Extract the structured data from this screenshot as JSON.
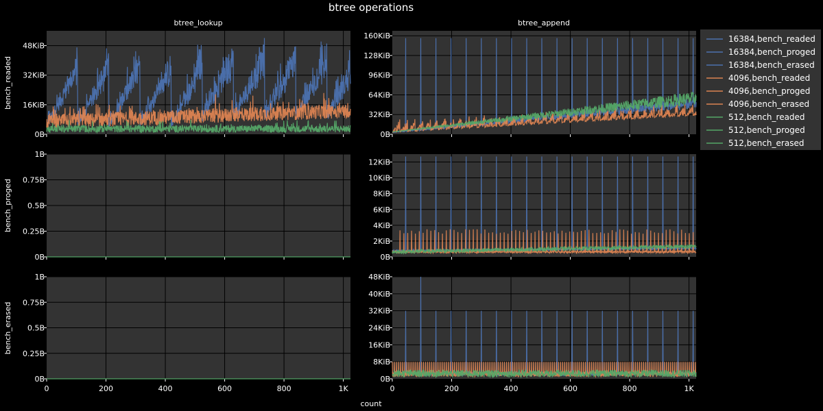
{
  "chart_data": {
    "type": "line",
    "title": "btree operations",
    "xlabel": "count",
    "columns": [
      "btree_lookup",
      "btree_append"
    ],
    "rows": [
      "bench_readed",
      "bench_proged",
      "bench_erased"
    ],
    "xlim": [
      0,
      1024
    ],
    "x_ticks": [
      "0",
      "200",
      "400",
      "600",
      "800",
      "1K"
    ],
    "x_tick_values": [
      0,
      200,
      400,
      600,
      800,
      1000
    ],
    "legend_position": "right-outside",
    "grid": true,
    "panels": [
      {
        "row": 0,
        "col": 0,
        "ylim_bytes": [
          0,
          57344
        ],
        "y_ticks": [
          "0B",
          "16KiB",
          "32KiB",
          "48KiB"
        ],
        "y_tick_values": [
          0,
          16384,
          32768,
          49152
        ]
      },
      {
        "row": 0,
        "col": 1,
        "ylim_bytes": [
          0,
          172032
        ],
        "y_ticks": [
          "0B",
          "32KiB",
          "64KiB",
          "96KiB",
          "128KiB",
          "160KiB"
        ],
        "y_tick_values": [
          0,
          32768,
          65536,
          98304,
          131072,
          163840
        ]
      },
      {
        "row": 1,
        "col": 0,
        "ylim_bytes": [
          0,
          1
        ],
        "y_ticks": [
          "0B",
          "0.25B",
          "0.5B",
          "0.75B",
          "1B"
        ],
        "y_tick_values": [
          0,
          0.25,
          0.5,
          0.75,
          1
        ]
      },
      {
        "row": 1,
        "col": 1,
        "ylim_bytes": [
          0,
          13312
        ],
        "y_ticks": [
          "0B",
          "2KiB",
          "4KiB",
          "6KiB",
          "8KiB",
          "10KiB",
          "12KiB"
        ],
        "y_tick_values": [
          0,
          2048,
          4096,
          6144,
          8192,
          10240,
          12288
        ]
      },
      {
        "row": 2,
        "col": 0,
        "ylim_bytes": [
          0,
          1
        ],
        "y_ticks": [
          "0B",
          "0.25B",
          "0.5B",
          "0.75B",
          "1B"
        ],
        "y_tick_values": [
          0,
          0.25,
          0.5,
          0.75,
          1
        ]
      },
      {
        "row": 2,
        "col": 1,
        "ylim_bytes": [
          0,
          49152
        ],
        "y_ticks": [
          "0B",
          "8KiB",
          "16KiB",
          "24KiB",
          "32KiB",
          "40KiB",
          "48KiB"
        ],
        "y_tick_values": [
          0,
          8192,
          16384,
          24576,
          32768,
          40960,
          49152
        ]
      }
    ],
    "series": [
      {
        "name": "16384,bench_readed",
        "color": "#4c72b0",
        "block_size": 16384
      },
      {
        "name": "16384,bench_proged",
        "color": "#4c72b0",
        "block_size": 16384
      },
      {
        "name": "16384,bench_erased",
        "color": "#4c72b0",
        "block_size": 16384
      },
      {
        "name": "4096,bench_readed",
        "color": "#dd8452",
        "block_size": 4096
      },
      {
        "name": "4096,bench_proged",
        "color": "#dd8452",
        "block_size": 4096
      },
      {
        "name": "4096,bench_erased",
        "color": "#dd8452",
        "block_size": 4096
      },
      {
        "name": "512,bench_readed",
        "color": "#55a868",
        "block_size": 512
      },
      {
        "name": "512,bench_proged",
        "color": "#55a868",
        "block_size": 512
      },
      {
        "name": "512,bench_erased",
        "color": "#55a868",
        "block_size": 512
      }
    ],
    "values_approx": {
      "btree_lookup_bench_readed": {
        "16384_max": 56000,
        "4096_max": 24000,
        "512_max": 8000
      },
      "btree_lookup_bench_proged": {
        "all": 0
      },
      "btree_lookup_bench_erased": {
        "all": 0
      },
      "btree_append_bench_readed": {
        "16384_spikes": 160000,
        "trend_end": 60000
      },
      "btree_append_bench_proged": {
        "16384_spikes": 13000,
        "4096_spikes": 3000,
        "512_level": 1000
      },
      "btree_append_bench_erased": {
        "16384_spikes": 32768,
        "16384_peak_x95": 49152,
        "4096_spikes": 8192
      }
    }
  },
  "colors": {
    "background": "#000000",
    "panel": "#333333",
    "grid": "#000000",
    "legend_bg": "#333333"
  }
}
